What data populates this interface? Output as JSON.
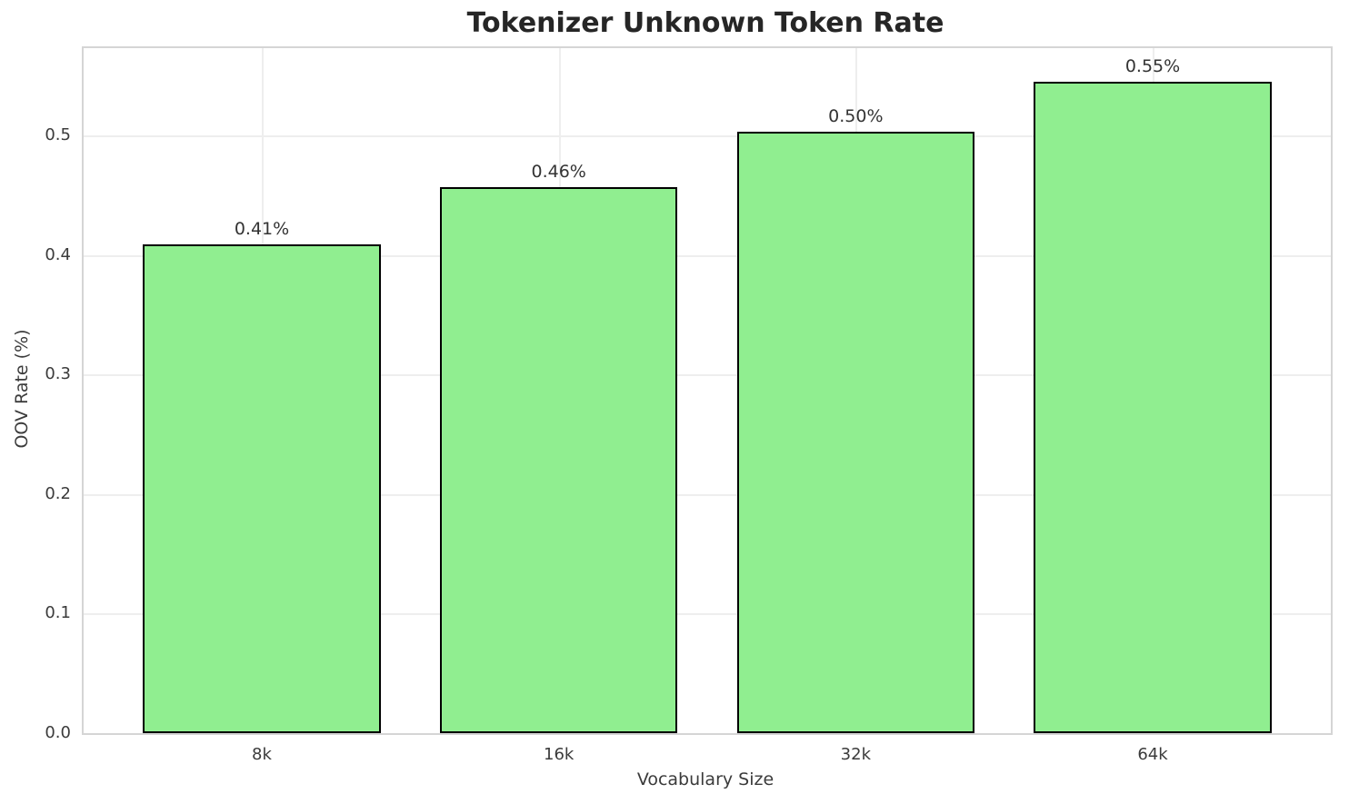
{
  "chart_data": {
    "type": "bar",
    "title": "Tokenizer Unknown Token Rate",
    "xlabel": "Vocabulary Size",
    "ylabel": "OOV Rate (%)",
    "categories": [
      "8k",
      "16k",
      "32k",
      "64k"
    ],
    "values": [
      0.409,
      0.457,
      0.503,
      0.545
    ],
    "bar_labels": [
      "0.41%",
      "0.46%",
      "0.50%",
      "0.55%"
    ],
    "yticks": [
      "0.0",
      "0.1",
      "0.2",
      "0.3",
      "0.4",
      "0.5"
    ],
    "ylim": [
      0,
      0.573
    ],
    "grid": true,
    "legend": false,
    "bar_color": "#90EE90",
    "bar_edge_color": "#000000"
  }
}
